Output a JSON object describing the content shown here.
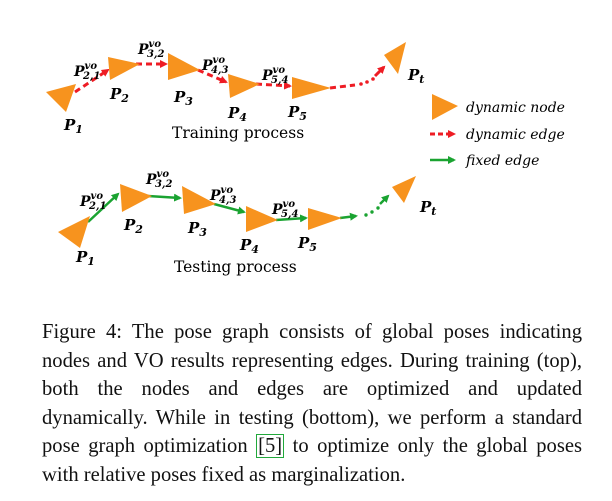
{
  "legend": {
    "node_label": "dynamic node",
    "dyn_edge_label": "dynamic edge",
    "fixed_edge_label": "fixed edge"
  },
  "diagram": {
    "training_label": "Training process",
    "testing_label": "Testing process",
    "node_letter": "P",
    "node_subs": [
      "1",
      "2",
      "3",
      "4",
      "5",
      "t"
    ],
    "edge_sup": "vo",
    "edge_subs": [
      "2,1",
      "3,2",
      "4,3",
      "5,4"
    ]
  },
  "caption": {
    "before_ref": "Figure 4: The pose graph consists of global poses indicating nodes and VO results representing edges. During training (top), both the nodes and edges are optimized and updated dynamically. While in testing (bottom), we perform a standard pose graph optimization ",
    "ref": "[5]",
    "after_ref": " to optimize only the global poses with relative poses fixed as marginalization."
  },
  "colors": {
    "node": "#f7931e",
    "dynamic_edge": "#ee1c24",
    "fixed_edge": "#1aa331"
  }
}
